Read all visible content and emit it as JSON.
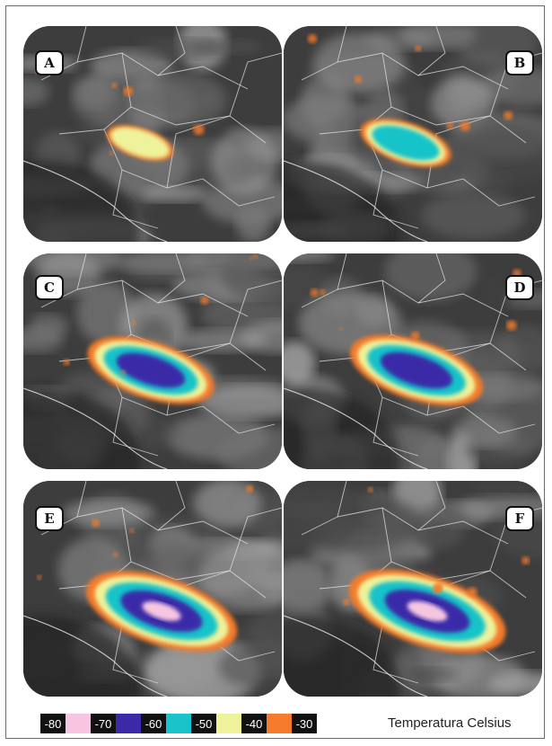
{
  "panels": [
    {
      "label": "A",
      "intensity": 0.15
    },
    {
      "label": "B",
      "intensity": 0.35
    },
    {
      "label": "C",
      "intensity": 0.65
    },
    {
      "label": "D",
      "intensity": 0.7
    },
    {
      "label": "E",
      "intensity": 0.85
    },
    {
      "label": "F",
      "intensity": 0.9
    }
  ],
  "legend": {
    "title": "Temperatura  Celsius",
    "items": [
      {
        "value": "-80",
        "color": "#f6c6e0"
      },
      {
        "value": "-70",
        "color": "#3a2aa8"
      },
      {
        "value": "-60",
        "color": "#19c3c9"
      },
      {
        "value": "-50",
        "color": "#eef29a"
      },
      {
        "value": "-40",
        "color": "#f57a2c"
      },
      {
        "value": "-30",
        "color": ""
      }
    ]
  }
}
